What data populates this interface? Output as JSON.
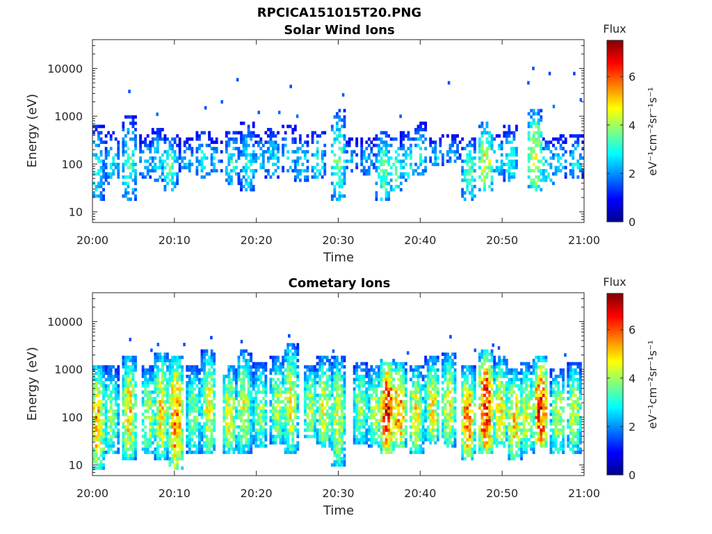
{
  "figure": {
    "title": "RPCICA151015T20.PNG"
  },
  "chart_data": [
    {
      "type": "heatmap",
      "title": "Solar Wind Ions",
      "xlabel": "Time",
      "ylabel": "Energy (eV)",
      "x_tick_labels": [
        "20:00",
        "20:10",
        "20:20",
        "20:30",
        "20:40",
        "20:50",
        "21:00"
      ],
      "x_range": [
        "20:00",
        "21:00"
      ],
      "y_scale": "log",
      "y_tick_labels": [
        "10",
        "100",
        "1000",
        "10000"
      ],
      "y_range": [
        6,
        40000
      ],
      "colorbar": {
        "label": "Flux",
        "units": "eV⁻¹cm⁻²sr⁻¹s⁻¹",
        "range": [
          0,
          7.5
        ],
        "tick_labels": [
          "0",
          "2",
          "4",
          "6"
        ],
        "colormap": "jet"
      },
      "grid": false,
      "bursts": [
        {
          "t": 0.5,
          "emin": 20,
          "emax": 500,
          "peak": 3.0
        },
        {
          "t": 2.5,
          "emin": 40,
          "emax": 400,
          "peak": 2.7
        },
        {
          "t": 4.5,
          "emin": 20,
          "emax": 800,
          "peak": 3.2
        },
        {
          "t": 6.5,
          "emin": 60,
          "emax": 350,
          "peak": 2.5
        },
        {
          "t": 8.0,
          "emin": 50,
          "emax": 450,
          "peak": 2.8
        },
        {
          "t": 9.5,
          "emin": 30,
          "emax": 350,
          "peak": 3.4
        },
        {
          "t": 11.5,
          "emin": 80,
          "emax": 300,
          "peak": 2.5
        },
        {
          "t": 13.5,
          "emin": 60,
          "emax": 400,
          "peak": 2.8
        },
        {
          "t": 15.0,
          "emin": 80,
          "emax": 300,
          "peak": 2.4
        },
        {
          "t": 17.0,
          "emin": 40,
          "emax": 400,
          "peak": 3.0
        },
        {
          "t": 19.0,
          "emin": 30,
          "emax": 600,
          "peak": 3.0
        },
        {
          "t": 20.5,
          "emin": 80,
          "emax": 350,
          "peak": 2.6
        },
        {
          "t": 22.0,
          "emin": 60,
          "emax": 450,
          "peak": 2.7
        },
        {
          "t": 24.0,
          "emin": 80,
          "emax": 500,
          "peak": 2.6
        },
        {
          "t": 25.5,
          "emin": 50,
          "emax": 350,
          "peak": 2.8
        },
        {
          "t": 27.5,
          "emin": 60,
          "emax": 400,
          "peak": 3.0
        },
        {
          "t": 30.0,
          "emin": 20,
          "emax": 1100,
          "peak": 3.6
        },
        {
          "t": 31.5,
          "emin": 80,
          "emax": 300,
          "peak": 2.4
        },
        {
          "t": 33.5,
          "emin": 70,
          "emax": 300,
          "peak": 2.4
        },
        {
          "t": 35.5,
          "emin": 20,
          "emax": 400,
          "peak": 3.6
        },
        {
          "t": 37.0,
          "emin": 30,
          "emax": 300,
          "peak": 3.4
        },
        {
          "t": 38.5,
          "emin": 50,
          "emax": 400,
          "peak": 3.0
        },
        {
          "t": 40.0,
          "emin": 70,
          "emax": 600,
          "peak": 2.8
        },
        {
          "t": 42.0,
          "emin": 100,
          "emax": 350,
          "peak": 2.4
        },
        {
          "t": 44.0,
          "emin": 120,
          "emax": 350,
          "peak": 2.3
        },
        {
          "t": 46.0,
          "emin": 20,
          "emax": 300,
          "peak": 3.4
        },
        {
          "t": 48.0,
          "emin": 30,
          "emax": 600,
          "peak": 4.6
        },
        {
          "t": 49.5,
          "emin": 70,
          "emax": 400,
          "peak": 2.8
        },
        {
          "t": 51.0,
          "emin": 50,
          "emax": 500,
          "peak": 3.0
        },
        {
          "t": 54.0,
          "emin": 30,
          "emax": 1200,
          "peak": 4.6
        },
        {
          "t": 55.5,
          "emin": 40,
          "emax": 300,
          "peak": 3.0
        },
        {
          "t": 57.0,
          "emin": 60,
          "emax": 350,
          "peak": 2.6
        },
        {
          "t": 59.0,
          "emin": 60,
          "emax": 350,
          "peak": 2.8
        }
      ],
      "sparse_points": [
        {
          "t": 4.5,
          "e": 3300,
          "v": 1.5
        },
        {
          "t": 13.8,
          "e": 1500,
          "v": 1.5
        },
        {
          "t": 15.8,
          "e": 2000,
          "v": 1.6
        },
        {
          "t": 17.7,
          "e": 5800,
          "v": 1.5
        },
        {
          "t": 20.3,
          "e": 1200,
          "v": 1.6
        },
        {
          "t": 22.8,
          "e": 1200,
          "v": 1.7
        },
        {
          "t": 24.2,
          "e": 4200,
          "v": 1.5
        },
        {
          "t": 25.0,
          "e": 1000,
          "v": 1.7
        },
        {
          "t": 30.6,
          "e": 2800,
          "v": 1.6
        },
        {
          "t": 37.6,
          "e": 1000,
          "v": 1.6
        },
        {
          "t": 43.5,
          "e": 5000,
          "v": 1.5
        },
        {
          "t": 53.2,
          "e": 5000,
          "v": 1.5
        },
        {
          "t": 53.8,
          "e": 10000,
          "v": 1.5
        },
        {
          "t": 55.8,
          "e": 7800,
          "v": 1.4
        },
        {
          "t": 58.8,
          "e": 7800,
          "v": 1.4
        },
        {
          "t": 59.6,
          "e": 2200,
          "v": 1.6
        },
        {
          "t": 56.3,
          "e": 1600,
          "v": 1.8
        },
        {
          "t": 7.9,
          "e": 1100,
          "v": 1.7
        }
      ]
    },
    {
      "type": "heatmap",
      "title": "Cometary Ions",
      "xlabel": "Time",
      "ylabel": "Energy (eV)",
      "x_tick_labels": [
        "20:00",
        "20:10",
        "20:20",
        "20:30",
        "20:40",
        "20:50",
        "21:00"
      ],
      "x_range": [
        "20:00",
        "21:00"
      ],
      "y_scale": "log",
      "y_tick_labels": [
        "10",
        "100",
        "1000",
        "10000"
      ],
      "y_range": [
        6,
        40000
      ],
      "colorbar": {
        "label": "Flux",
        "units": "eV⁻¹cm⁻²sr⁻¹s⁻¹",
        "range": [
          0,
          7.5
        ],
        "tick_labels": [
          "0",
          "2",
          "4",
          "6"
        ],
        "colormap": "jet"
      },
      "grid": false,
      "bursts": [
        {
          "t": 0.6,
          "emin": 8,
          "emax": 1000,
          "peak": 5.2
        },
        {
          "t": 2.3,
          "emin": 20,
          "emax": 900,
          "peak": 4.0
        },
        {
          "t": 4.5,
          "emin": 15,
          "emax": 1500,
          "peak": 5.0
        },
        {
          "t": 6.8,
          "emin": 20,
          "emax": 900,
          "peak": 4.2
        },
        {
          "t": 8.4,
          "emin": 15,
          "emax": 1800,
          "peak": 4.8
        },
        {
          "t": 10.2,
          "emin": 8,
          "emax": 1600,
          "peak": 5.8
        },
        {
          "t": 12.3,
          "emin": 20,
          "emax": 900,
          "peak": 4.0
        },
        {
          "t": 14.2,
          "emin": 20,
          "emax": 2000,
          "peak": 4.6
        },
        {
          "t": 16.7,
          "emin": 20,
          "emax": 1000,
          "peak": 4.6
        },
        {
          "t": 18.5,
          "emin": 20,
          "emax": 2200,
          "peak": 4.4
        },
        {
          "t": 20.5,
          "emin": 25,
          "emax": 1100,
          "peak": 4.0
        },
        {
          "t": 22.6,
          "emin": 30,
          "emax": 1500,
          "peak": 4.2
        },
        {
          "t": 24.2,
          "emin": 20,
          "emax": 2800,
          "peak": 4.6
        },
        {
          "t": 26.6,
          "emin": 40,
          "emax": 1000,
          "peak": 4.2
        },
        {
          "t": 28.3,
          "emin": 25,
          "emax": 1500,
          "peak": 4.6
        },
        {
          "t": 30.0,
          "emin": 10,
          "emax": 1500,
          "peak": 4.4
        },
        {
          "t": 32.7,
          "emin": 30,
          "emax": 1200,
          "peak": 4.0
        },
        {
          "t": 34.5,
          "emin": 25,
          "emax": 1000,
          "peak": 4.2
        },
        {
          "t": 36.0,
          "emin": 20,
          "emax": 1400,
          "peak": 6.6
        },
        {
          "t": 37.4,
          "emin": 25,
          "emax": 1200,
          "peak": 5.6
        },
        {
          "t": 39.5,
          "emin": 20,
          "emax": 900,
          "peak": 4.8
        },
        {
          "t": 41.5,
          "emin": 30,
          "emax": 1500,
          "peak": 4.8
        },
        {
          "t": 43.5,
          "emin": 25,
          "emax": 1800,
          "peak": 4.6
        },
        {
          "t": 45.8,
          "emin": 15,
          "emax": 900,
          "peak": 5.6
        },
        {
          "t": 48.0,
          "emin": 20,
          "emax": 2000,
          "peak": 6.6
        },
        {
          "t": 49.8,
          "emin": 25,
          "emax": 1500,
          "peak": 4.8
        },
        {
          "t": 51.5,
          "emin": 15,
          "emax": 800,
          "peak": 5.0
        },
        {
          "t": 53.0,
          "emin": 20,
          "emax": 1100,
          "peak": 4.4
        },
        {
          "t": 54.7,
          "emin": 25,
          "emax": 1500,
          "peak": 6.4
        },
        {
          "t": 56.8,
          "emin": 20,
          "emax": 800,
          "peak": 4.4
        },
        {
          "t": 58.8,
          "emin": 20,
          "emax": 1200,
          "peak": 4.2
        }
      ],
      "sparse_points": [
        {
          "t": 4.6,
          "e": 4200,
          "v": 1.5
        },
        {
          "t": 7.2,
          "e": 2500,
          "v": 1.5
        },
        {
          "t": 8.0,
          "e": 3300,
          "v": 1.6
        },
        {
          "t": 11.2,
          "e": 3300,
          "v": 1.5
        },
        {
          "t": 14.5,
          "e": 4600,
          "v": 1.4
        },
        {
          "t": 18.2,
          "e": 3800,
          "v": 1.5
        },
        {
          "t": 24.0,
          "e": 5000,
          "v": 1.4
        },
        {
          "t": 24.6,
          "e": 3200,
          "v": 1.5
        },
        {
          "t": 29.4,
          "e": 2400,
          "v": 1.6
        },
        {
          "t": 38.5,
          "e": 2200,
          "v": 1.6
        },
        {
          "t": 43.7,
          "e": 4800,
          "v": 1.4
        },
        {
          "t": 46.7,
          "e": 2500,
          "v": 1.6
        },
        {
          "t": 48.9,
          "e": 3200,
          "v": 1.5
        },
        {
          "t": 49.6,
          "e": 2800,
          "v": 1.5
        },
        {
          "t": 57.7,
          "e": 2000,
          "v": 1.6
        }
      ]
    }
  ]
}
